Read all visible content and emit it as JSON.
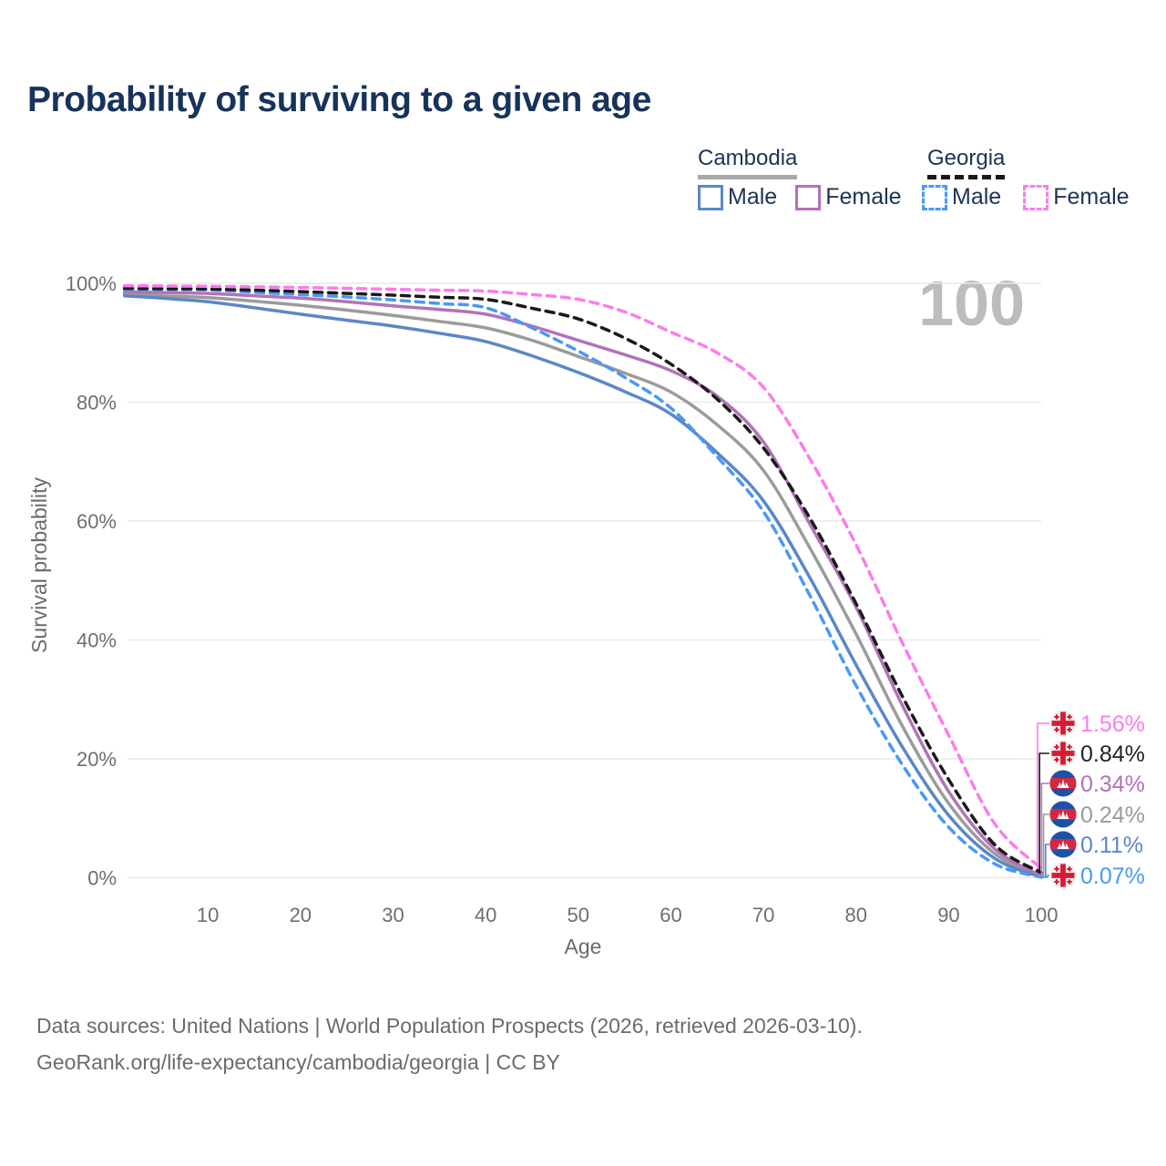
{
  "title": "Probability of surviving to a given age",
  "watermark": "100",
  "legend": {
    "groups": [
      {
        "label": "Cambodia",
        "line_style": "solid",
        "underline_color": "#a8a8a8",
        "items": [
          {
            "label": "Male",
            "color": "#5b87c7",
            "dashed": false
          },
          {
            "label": "Female",
            "color": "#b173b8",
            "dashed": false
          }
        ]
      },
      {
        "label": "Georgia",
        "line_style": "dashed",
        "underline_color": "#191919",
        "items": [
          {
            "label": "Male",
            "color": "#4a98f6",
            "dashed": true
          },
          {
            "label": "Female",
            "color": "#fb7ceb",
            "dashed": true
          }
        ]
      }
    ]
  },
  "axes": {
    "y_title": "Survival probability",
    "x_title": "Age",
    "y_ticks": [
      100,
      80,
      60,
      40,
      20,
      0
    ],
    "y_tick_suffix": "%",
    "x_ticks": [
      10,
      20,
      30,
      40,
      50,
      60,
      70,
      80,
      90,
      100
    ]
  },
  "chart_data": {
    "type": "line",
    "xlabel": "Age",
    "ylabel": "Survival probability",
    "xlim": [
      0,
      100
    ],
    "ylim": [
      0,
      100
    ],
    "grid": "horizontal",
    "x": [
      1,
      5,
      10,
      15,
      20,
      25,
      30,
      35,
      40,
      45,
      50,
      55,
      60,
      65,
      70,
      75,
      80,
      85,
      90,
      95,
      100
    ],
    "series": [
      {
        "name": "Cambodia — Total",
        "country": "Cambodia",
        "sex": "Both",
        "color": "#9b9b9b",
        "label_color": "#9b9b9b",
        "dashed": false,
        "flag": "cambodia",
        "end_label": "0.24%",
        "values": [
          98.2,
          97.9,
          97.6,
          97.0,
          96.3,
          95.5,
          94.6,
          93.6,
          92.5,
          90.4,
          87.7,
          84.9,
          81.7,
          76.2,
          68.5,
          55.5,
          41.0,
          25.5,
          12.5,
          4.0,
          0.24
        ]
      },
      {
        "name": "Cambodia — Male",
        "country": "Cambodia",
        "sex": "Male",
        "color": "#5b87c7",
        "label_color": "#5b87c7",
        "dashed": false,
        "flag": "cambodia",
        "end_label": "0.11%",
        "values": [
          97.9,
          97.5,
          96.9,
          95.9,
          94.8,
          93.8,
          92.8,
          91.6,
          90.2,
          87.8,
          85.0,
          81.8,
          78.0,
          71.5,
          63.4,
          50.5,
          35.8,
          22.0,
          10.5,
          3.2,
          0.11
        ]
      },
      {
        "name": "Cambodia — Female",
        "country": "Cambodia",
        "sex": "Female",
        "color": "#b173b8",
        "label_color": "#b173b8",
        "dashed": false,
        "flag": "cambodia",
        "end_label": "0.34%",
        "values": [
          98.6,
          98.45,
          98.3,
          97.9,
          97.5,
          96.9,
          96.2,
          95.6,
          94.8,
          92.8,
          90.4,
          88.0,
          85.3,
          81.0,
          73.3,
          59.5,
          45.5,
          29.0,
          14.5,
          4.8,
          0.34
        ]
      },
      {
        "name": "Georgia — Male",
        "country": "Georgia",
        "sex": "Male",
        "color": "#4a98f6",
        "label_color": "#4a98f6",
        "dashed": true,
        "flag": "georgia",
        "end_label": "0.07%",
        "values": [
          99.0,
          98.95,
          98.9,
          98.5,
          98.1,
          97.7,
          97.2,
          96.6,
          95.9,
          92.5,
          88.6,
          84.2,
          79.0,
          70.8,
          61.6,
          47.5,
          32.3,
          19.0,
          8.5,
          2.3,
          0.07
        ]
      },
      {
        "name": "Georgia — Total",
        "country": "Georgia",
        "sex": "Both",
        "color": "#1a1a1a",
        "label_color": "#222222",
        "dashed": true,
        "flag": "georgia",
        "end_label": "0.84%",
        "values": [
          99.15,
          99.1,
          99.05,
          98.85,
          98.6,
          98.3,
          98.0,
          97.65,
          97.3,
          95.8,
          94.0,
          90.8,
          86.4,
          80.5,
          72.3,
          60.5,
          46.1,
          30.5,
          16.5,
          5.5,
          0.84
        ]
      },
      {
        "name": "Georgia — Female",
        "country": "Georgia",
        "sex": "Female",
        "color": "#fb7ceb",
        "label_color": "#fb7ceb",
        "dashed": true,
        "flag": "georgia",
        "end_label": "1.56%",
        "values": [
          99.6,
          99.55,
          99.5,
          99.4,
          99.3,
          99.15,
          99.0,
          98.85,
          98.7,
          98.1,
          97.3,
          95.2,
          91.8,
          88.3,
          82.5,
          70.5,
          56.0,
          39.5,
          24.0,
          9.0,
          1.56
        ]
      }
    ]
  },
  "footer": {
    "line1": "Data sources: United Nations | World Population Prospects (2026, retrieved 2026-03-10).",
    "line2": "GeoRank.org/life-expectancy/cambodia/georgia | CC BY"
  },
  "flag_colors": {
    "georgia_bg": "#efefef",
    "georgia_red": "#da1a32",
    "cambodia_blue": "#1f50a8",
    "cambodia_red": "#d42942",
    "cambodia_white": "#ffffff"
  }
}
